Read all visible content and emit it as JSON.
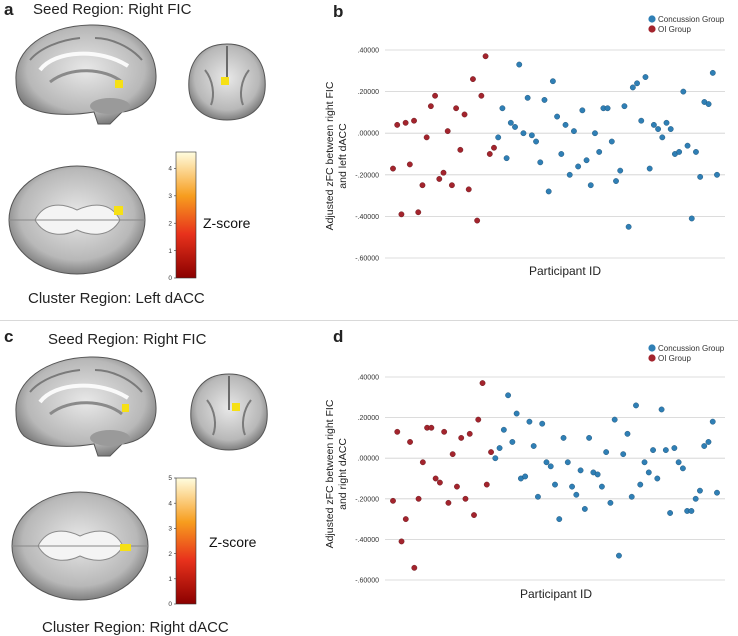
{
  "colors": {
    "concussion": "#2f7fb5",
    "oi": "#a3242d",
    "grid": "#d0d0d0",
    "blob": "#f6e015"
  },
  "panels": [
    {
      "brain": {
        "letter": "a",
        "seed_label": "Seed Region: Right FIC",
        "cluster_label": "Cluster Region: Left dACC",
        "colorbar_title": "Z-score",
        "colorbar_ticks": [
          "0",
          "1",
          "2",
          "3",
          "4"
        ],
        "colorbar_max": 4.6
      },
      "chart_data": {
        "type": "scatter",
        "letter": "b",
        "ylabel_line1": "Adjusted zFC between right FIC",
        "ylabel_line2": "and left dACC",
        "xlabel": "Participant ID",
        "ylim": [
          -0.6,
          0.4
        ],
        "yticks": [
          ".40000",
          ".20000",
          ".00000",
          "-.20000",
          "-.40000",
          "-.60000"
        ],
        "legend": [
          "Concussion Group",
          "OI Group"
        ],
        "series": [
          {
            "name": "OI Group",
            "values": [
              -0.17,
              0.04,
              -0.39,
              0.05,
              -0.15,
              0.06,
              -0.38,
              -0.25,
              -0.02,
              0.13,
              0.18,
              -0.22,
              -0.19,
              0.01,
              -0.25,
              0.12,
              -0.08,
              0.09,
              -0.27,
              0.26,
              -0.42,
              0.18,
              0.37,
              -0.1,
              -0.07
            ]
          },
          {
            "name": "Concussion Group",
            "values": [
              -0.02,
              0.12,
              -0.12,
              0.05,
              0.03,
              0.33,
              0.0,
              0.17,
              -0.01,
              -0.04,
              -0.14,
              0.16,
              -0.28,
              0.25,
              0.08,
              -0.1,
              0.04,
              -0.2,
              0.01,
              -0.16,
              0.11,
              -0.13,
              -0.25,
              0.0,
              -0.09,
              0.12,
              0.12,
              -0.04,
              -0.23,
              -0.18,
              0.13,
              -0.45,
              0.22,
              0.24,
              0.06,
              0.27,
              -0.17,
              0.04,
              0.02,
              -0.02,
              0.05,
              0.02,
              -0.1,
              -0.09,
              0.2,
              -0.06,
              -0.41,
              -0.09,
              -0.21,
              0.15,
              0.14,
              0.29,
              -0.2
            ]
          }
        ]
      }
    },
    {
      "brain": {
        "letter": "c",
        "seed_label": "Seed Region: Right FIC",
        "cluster_label": "Cluster Region: Right dACC",
        "colorbar_title": "Z-score",
        "colorbar_ticks": [
          "0",
          "1",
          "2",
          "3",
          "4",
          "5"
        ],
        "colorbar_max": 5
      },
      "chart_data": {
        "type": "scatter",
        "letter": "d",
        "ylabel_line1": "Adjusted zFC between right FIC",
        "ylabel_line2": "and right dACC",
        "xlabel": "Participant ID",
        "ylim": [
          -0.6,
          0.4
        ],
        "yticks": [
          ".40000",
          ".20000",
          ".00000",
          "-.20000",
          "-.40000",
          "-.60000"
        ],
        "legend": [
          "Concussion Group",
          "OI Group"
        ],
        "series": [
          {
            "name": "OI Group",
            "values": [
              -0.21,
              0.13,
              -0.41,
              -0.3,
              0.08,
              -0.54,
              -0.2,
              -0.02,
              0.15,
              0.15,
              -0.1,
              -0.12,
              0.13,
              -0.22,
              0.02,
              -0.14,
              0.1,
              -0.2,
              0.12,
              -0.28,
              0.19,
              0.37,
              -0.13,
              0.03
            ]
          },
          {
            "name": "Concussion Group",
            "values": [
              0.0,
              0.05,
              0.14,
              0.31,
              0.08,
              0.22,
              -0.1,
              -0.09,
              0.18,
              0.06,
              -0.19,
              0.17,
              -0.02,
              -0.04,
              -0.13,
              -0.3,
              0.1,
              -0.02,
              -0.14,
              -0.18,
              -0.06,
              -0.25,
              0.1,
              -0.07,
              -0.08,
              -0.14,
              0.03,
              -0.22,
              0.19,
              -0.48,
              0.02,
              0.12,
              -0.19,
              0.26,
              -0.13,
              -0.02,
              -0.07,
              0.04,
              -0.1,
              0.24,
              0.04,
              -0.27,
              0.05,
              -0.02,
              -0.05,
              -0.26,
              -0.26,
              -0.2,
              -0.16,
              0.06,
              0.08,
              0.18,
              -0.17
            ]
          }
        ]
      }
    }
  ]
}
